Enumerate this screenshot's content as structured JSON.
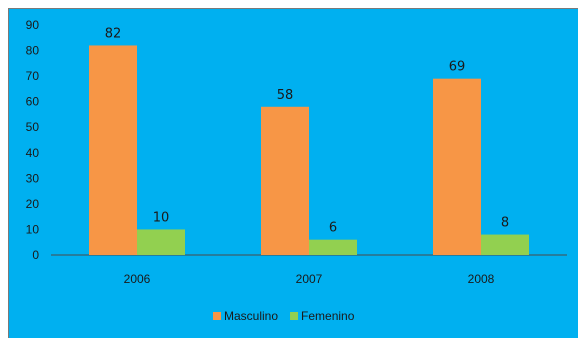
{
  "chart_data": {
    "type": "bar",
    "categories": [
      "2006",
      "2007",
      "2008"
    ],
    "series": [
      {
        "name": "Masculino",
        "values": [
          82,
          58,
          69
        ],
        "color": "#f79646"
      },
      {
        "name": "Femenino",
        "values": [
          10,
          6,
          8
        ],
        "color": "#92d050"
      }
    ],
    "y_ticks": [
      "0",
      "10",
      "20",
      "30",
      "40",
      "50",
      "60",
      "70",
      "80",
      "90"
    ],
    "ylim": [
      0,
      90
    ],
    "grid": false,
    "legend_position": "bottom",
    "background_color": "#00b0f0",
    "title": "",
    "xlabel": "",
    "ylabel": ""
  }
}
